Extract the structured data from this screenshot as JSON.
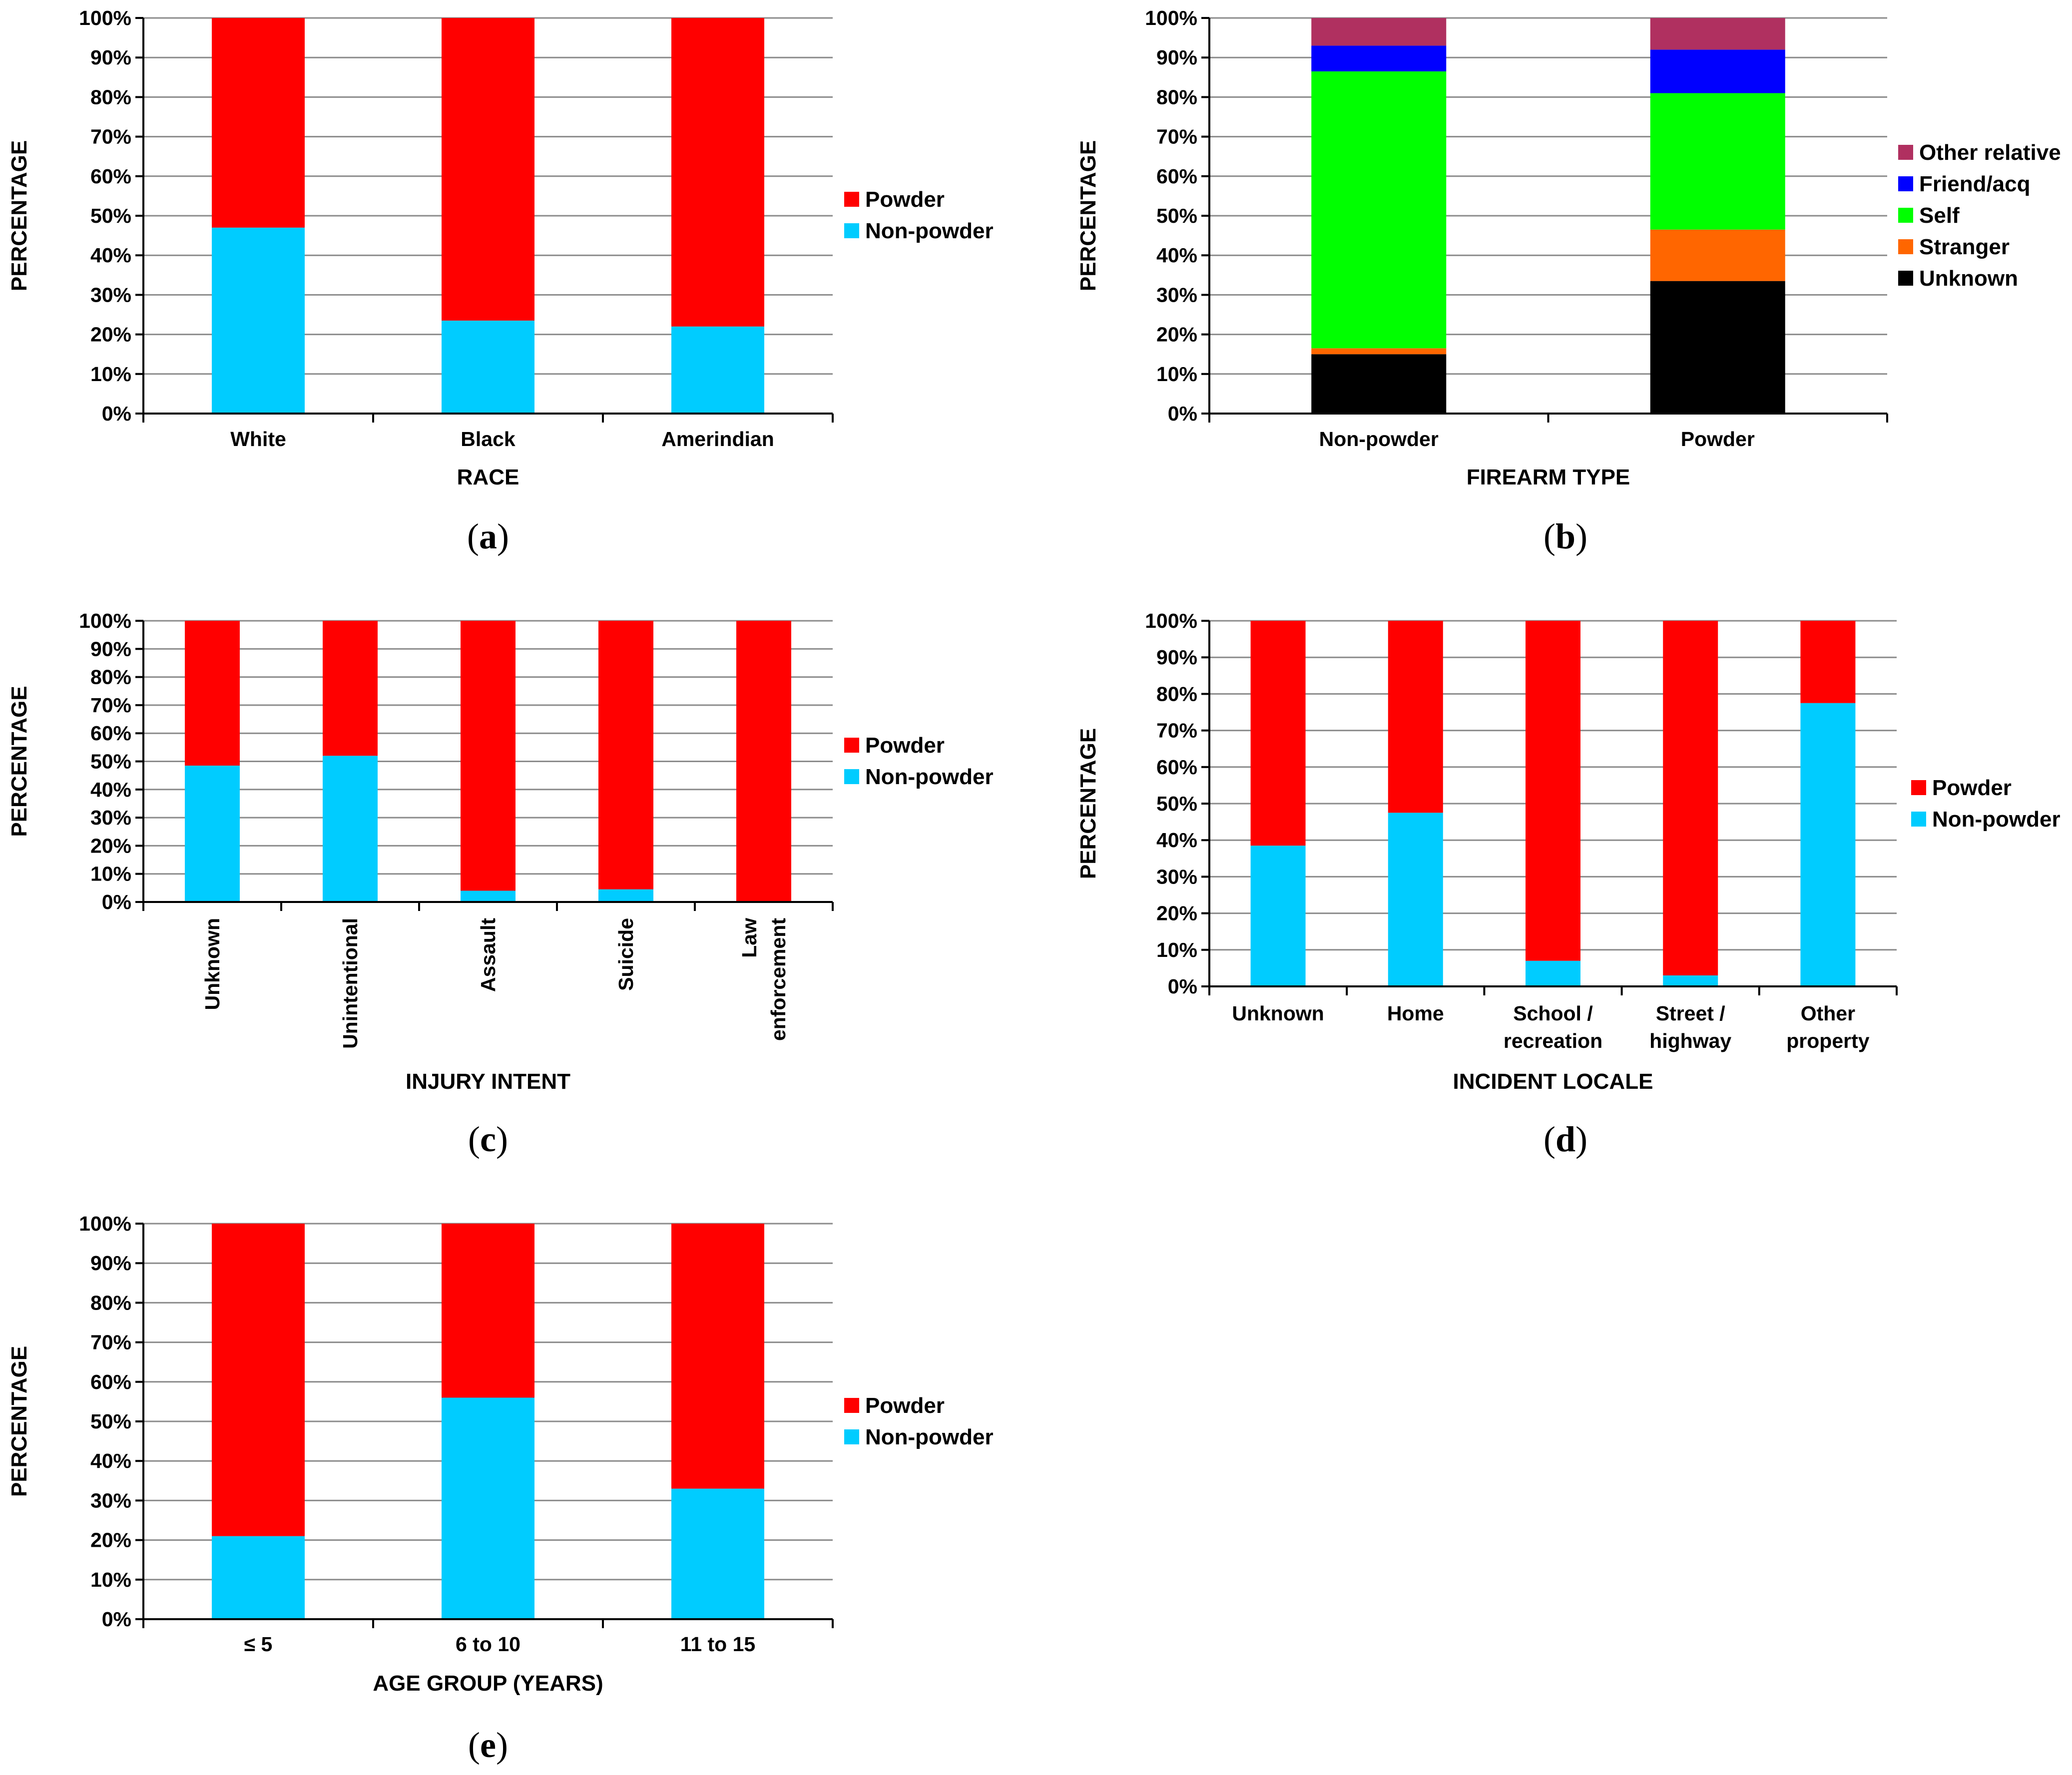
{
  "colors": {
    "powder": "#ff0000",
    "non_powder": "#00ccff",
    "unknown": "#000000",
    "stranger": "#ff6600",
    "self": "#00ff00",
    "friend_acq": "#0000ff",
    "other_relative": "#b03060"
  },
  "chart_data": [
    {
      "panel": "a",
      "type": "bar",
      "stacked": true,
      "categories": [
        "White",
        "Black",
        "Amerindian"
      ],
      "series": [
        {
          "name": "Non-powder",
          "color": "#00ccff",
          "values": [
            47,
            23.5,
            22
          ]
        },
        {
          "name": "Powder",
          "color": "#ff0000",
          "values": [
            53,
            76.5,
            78
          ]
        }
      ],
      "legend": [
        "Powder",
        "Non-powder"
      ],
      "xlabel": "RACE",
      "ylabel": "PERCENTAGE",
      "ylim": [
        0,
        100
      ],
      "yticks": [
        "0%",
        "10%",
        "20%",
        "30%",
        "40%",
        "50%",
        "60%",
        "70%",
        "80%",
        "90%",
        "100%"
      ],
      "grid": true,
      "legend_position": "right"
    },
    {
      "panel": "b",
      "type": "bar",
      "stacked": true,
      "categories": [
        "Non-powder",
        "Powder"
      ],
      "series": [
        {
          "name": "Unknown",
          "color": "#000000",
          "values": [
            15,
            33.5
          ]
        },
        {
          "name": "Stranger",
          "color": "#ff6600",
          "values": [
            1.5,
            13
          ]
        },
        {
          "name": "Self",
          "color": "#00ff00",
          "values": [
            70,
            34.5
          ]
        },
        {
          "name": "Friend/acq",
          "color": "#0000ff",
          "values": [
            6.5,
            11
          ]
        },
        {
          "name": "Other relative",
          "color": "#b03060",
          "values": [
            7,
            8
          ]
        }
      ],
      "legend": [
        "Other relative",
        "Friend/acq",
        "Self",
        "Stranger",
        "Unknown"
      ],
      "xlabel": "FIREARM TYPE",
      "ylabel": "PERCENTAGE",
      "ylim": [
        0,
        100
      ],
      "yticks": [
        "0%",
        "10%",
        "20%",
        "30%",
        "40%",
        "50%",
        "60%",
        "70%",
        "80%",
        "90%",
        "100%"
      ],
      "grid": true,
      "legend_position": "right"
    },
    {
      "panel": "c",
      "type": "bar",
      "stacked": true,
      "categories": [
        "Unknown",
        "Unintentional",
        "Assault",
        "Suicide",
        "Law enforcement"
      ],
      "category_lines": [
        [
          "Unknown"
        ],
        [
          "Unintentional"
        ],
        [
          "Assault"
        ],
        [
          "Suicide"
        ],
        [
          "Law",
          "enforcement"
        ]
      ],
      "series": [
        {
          "name": "Non-powder",
          "color": "#00ccff",
          "values": [
            48.5,
            52,
            4,
            4.5,
            0
          ]
        },
        {
          "name": "Powder",
          "color": "#ff0000",
          "values": [
            51.5,
            48,
            96,
            95.5,
            100
          ]
        }
      ],
      "legend": [
        "Powder",
        "Non-powder"
      ],
      "xlabel": "INJURY INTENT",
      "ylabel": "PERCENTAGE",
      "ylim": [
        0,
        100
      ],
      "yticks": [
        "0%",
        "10%",
        "20%",
        "30%",
        "40%",
        "50%",
        "60%",
        "70%",
        "80%",
        "90%",
        "100%"
      ],
      "grid": true,
      "legend_position": "right"
    },
    {
      "panel": "d",
      "type": "bar",
      "stacked": true,
      "categories": [
        "Unknown",
        "Home",
        "School / recreation",
        "Street / highway",
        "Other property"
      ],
      "category_lines": [
        [
          "Unknown"
        ],
        [
          "Home"
        ],
        [
          "School /",
          "recreation"
        ],
        [
          "Street /",
          "highway"
        ],
        [
          "Other",
          "property"
        ]
      ],
      "series": [
        {
          "name": "Non-powder",
          "color": "#00ccff",
          "values": [
            38.5,
            47.5,
            7,
            3,
            77.5
          ]
        },
        {
          "name": "Powder",
          "color": "#ff0000",
          "values": [
            61.5,
            52.5,
            93,
            97,
            22.5
          ]
        }
      ],
      "legend": [
        "Powder",
        "Non-powder"
      ],
      "xlabel": "INCIDENT LOCALE",
      "ylabel": "PERCENTAGE",
      "ylim": [
        0,
        100
      ],
      "yticks": [
        "0%",
        "10%",
        "20%",
        "30%",
        "40%",
        "50%",
        "60%",
        "70%",
        "80%",
        "90%",
        "100%"
      ],
      "grid": true,
      "legend_position": "right"
    },
    {
      "panel": "e",
      "type": "bar",
      "stacked": true,
      "categories": [
        "≤ 5",
        "6 to 10",
        "11 to 15"
      ],
      "series": [
        {
          "name": "Non-powder",
          "color": "#00ccff",
          "values": [
            21,
            56,
            33
          ]
        },
        {
          "name": "Powder",
          "color": "#ff0000",
          "values": [
            79,
            44,
            67
          ]
        }
      ],
      "legend": [
        "Powder",
        "Non-powder"
      ],
      "xlabel": "AGE GROUP (YEARS)",
      "ylabel": "PERCENTAGE",
      "ylim": [
        0,
        100
      ],
      "yticks": [
        "0%",
        "10%",
        "20%",
        "30%",
        "40%",
        "50%",
        "60%",
        "70%",
        "80%",
        "90%",
        "100%"
      ],
      "grid": true,
      "legend_position": "right"
    }
  ],
  "panel_labels": [
    "a",
    "b",
    "c",
    "d",
    "e"
  ]
}
